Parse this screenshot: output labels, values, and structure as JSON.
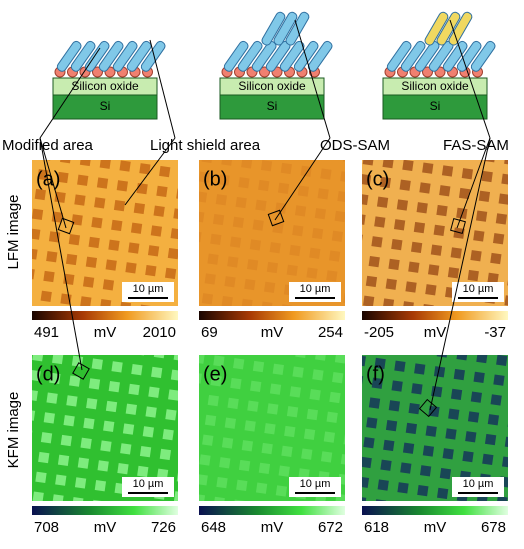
{
  "schematics": [
    {
      "layers": [
        "Silicon oxide",
        "Si"
      ]
    },
    {
      "layers": [
        "Silicon oxide",
        "Si"
      ]
    },
    {
      "layers": [
        "Silicon oxide",
        "Si"
      ]
    }
  ],
  "callouts": {
    "modified_area": "Modified area",
    "light_shield_area": "Light shield area",
    "ods_sam": "ODS-SAM",
    "fas_sam": "FAS-SAM"
  },
  "row_labels": [
    "LFM image",
    "KFM image"
  ],
  "panels": [
    {
      "label": "(a)",
      "scale_bar": "10 µm",
      "colorbar": {
        "min": 491,
        "unit": "mV",
        "max": 2010
      }
    },
    {
      "label": "(b)",
      "scale_bar": "10 µm",
      "colorbar": {
        "min": 69,
        "unit": "mV",
        "max": 254
      }
    },
    {
      "label": "(c)",
      "scale_bar": "10 µm",
      "colorbar": {
        "min": -205,
        "unit": "mV",
        "max": -37
      }
    },
    {
      "label": "(d)",
      "scale_bar": "10 µm",
      "colorbar": {
        "min": 708,
        "unit": "mV",
        "max": 726
      }
    },
    {
      "label": "(e)",
      "scale_bar": "10 µm",
      "colorbar": {
        "min": 648,
        "unit": "mV",
        "max": 672
      }
    },
    {
      "label": "(f)",
      "scale_bar": "10 µm",
      "colorbar": {
        "min": 618,
        "unit": "mV",
        "max": 678
      }
    }
  ]
}
